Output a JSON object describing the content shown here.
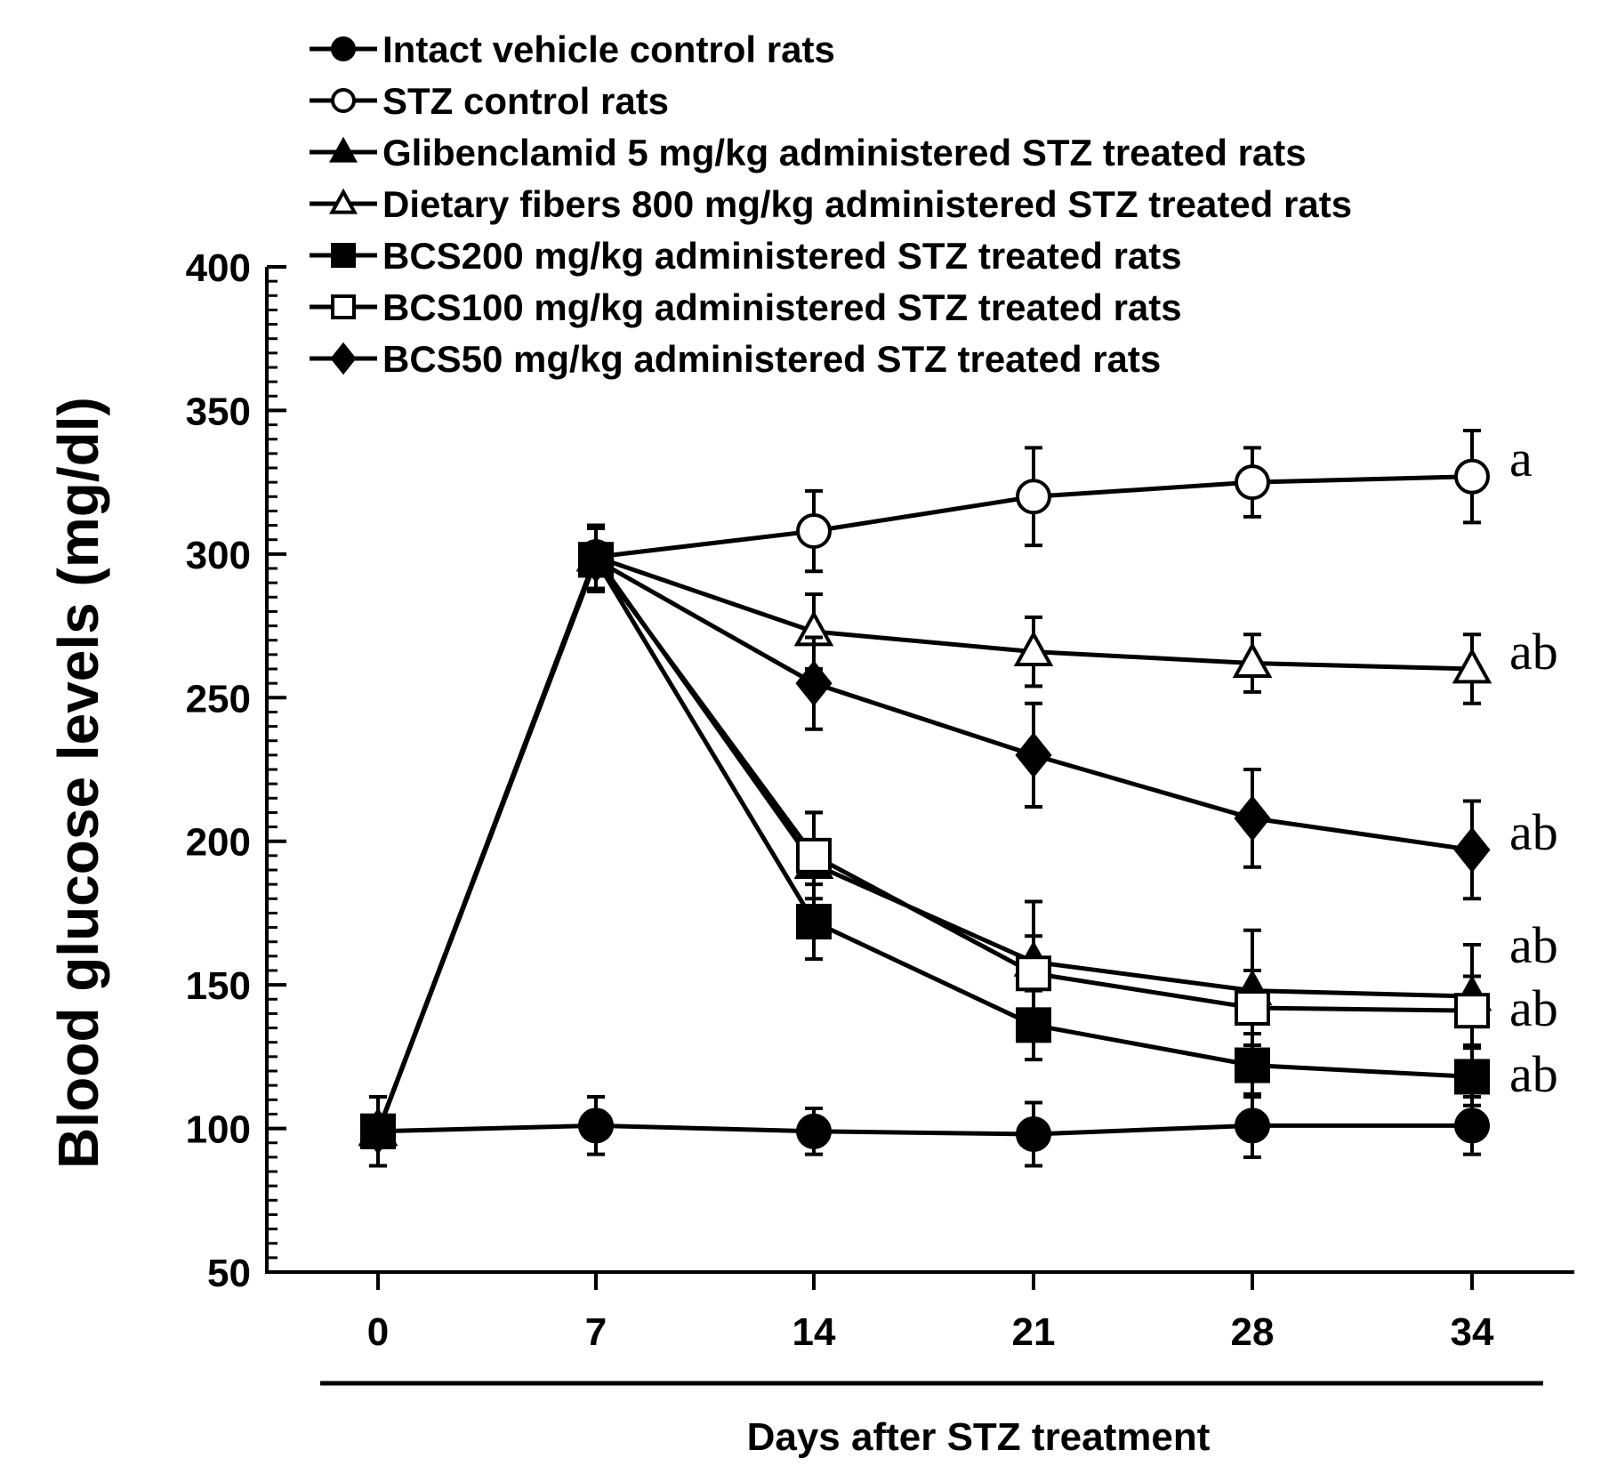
{
  "chart_data": {
    "type": "line",
    "title": "",
    "xlabel": "Days after STZ treatment",
    "ylabel": "Blood glucose levels (mg/dl)",
    "ylim": [
      50,
      400
    ],
    "y_ticks": [
      "50",
      "100",
      "150",
      "200",
      "250",
      "300",
      "350",
      "400"
    ],
    "x_ticks": [
      "0",
      "7",
      "14",
      "21",
      "28",
      "34"
    ],
    "x": [
      0,
      7,
      14,
      21,
      28,
      34
    ],
    "grid": false,
    "legend_position": "top",
    "series": [
      {
        "name": "Intact vehicle control rats",
        "marker": "circle-filled",
        "values": [
          99,
          101,
          99,
          98,
          101,
          101
        ],
        "errors": [
          12,
          10,
          8,
          11,
          11,
          10
        ],
        "label": ""
      },
      {
        "name": "STZ control rats",
        "marker": "circle-open",
        "values": [
          99,
          299,
          308,
          320,
          325,
          327
        ],
        "errors": [
          12,
          11,
          14,
          17,
          12,
          16
        ],
        "label": "a"
      },
      {
        "name": "Glibenclamid 5 mg/kg administered STZ treated rats",
        "marker": "triangle-filled",
        "values": [
          99,
          299,
          192,
          158,
          148,
          146
        ],
        "errors": [
          12,
          11,
          18,
          21,
          21,
          18
        ],
        "label": "ab"
      },
      {
        "name": "Dietary fibers 800 mg/kg administered STZ treated rats",
        "marker": "triangle-open",
        "values": [
          99,
          299,
          273,
          266,
          262,
          260
        ],
        "errors": [
          12,
          11,
          13,
          12,
          10,
          12
        ],
        "label": "ab"
      },
      {
        "name": "BCS200 mg/kg administered STZ treated rats",
        "marker": "square-filled",
        "values": [
          99,
          298,
          172,
          136,
          122,
          118
        ],
        "errors": [
          12,
          11,
          13,
          12,
          11,
          10
        ],
        "label": "ab"
      },
      {
        "name": "BCS100 mg/kg administered STZ treated rats",
        "marker": "square-open",
        "values": [
          99,
          298,
          195,
          154,
          142,
          141
        ],
        "errors": [
          12,
          11,
          15,
          13,
          13,
          12
        ],
        "label": "ab"
      },
      {
        "name": "BCS50 mg/kg administered STZ treated rats",
        "marker": "diamond-filled",
        "values": [
          99,
          298,
          255,
          230,
          208,
          197
        ],
        "errors": [
          12,
          11,
          16,
          18,
          17,
          17
        ],
        "label": "ab"
      }
    ]
  }
}
